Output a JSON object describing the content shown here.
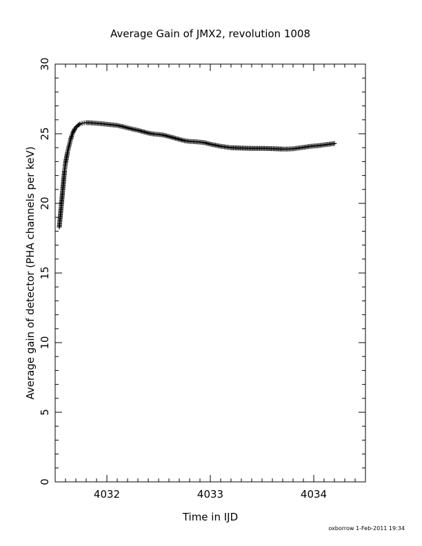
{
  "chart_data": {
    "type": "scatter",
    "title": "Average Gain of JMX2, revolution 1008",
    "xlabel": "Time in IJD",
    "ylabel": "Average gain of detector (PHA channels per keV)",
    "xlim": [
      4031.5,
      4034.5
    ],
    "ylim": [
      0,
      30
    ],
    "xticks_major": [
      4032,
      4033,
      4034
    ],
    "xtick_labels": [
      "4032",
      "4033",
      "4034"
    ],
    "yticks_major": [
      0,
      5,
      10,
      15,
      20,
      25,
      30
    ],
    "ytick_labels": [
      "0",
      "5",
      "10",
      "15",
      "20",
      "25",
      "30"
    ],
    "grid": false,
    "marker": "plus",
    "series": [
      {
        "points": [
          [
            4031.54,
            18.3
          ],
          [
            4031.545,
            18.7
          ],
          [
            4031.55,
            19.1
          ],
          [
            4031.555,
            19.5
          ],
          [
            4031.56,
            19.9
          ],
          [
            4031.565,
            20.3
          ],
          [
            4031.57,
            20.7
          ],
          [
            4031.575,
            21.1
          ],
          [
            4031.58,
            21.5
          ],
          [
            4031.585,
            21.9
          ],
          [
            4031.59,
            22.3
          ],
          [
            4031.595,
            22.6
          ],
          [
            4031.6,
            22.9
          ],
          [
            4031.61,
            23.3
          ],
          [
            4031.62,
            23.7
          ],
          [
            4031.63,
            24.0
          ],
          [
            4031.64,
            24.3
          ],
          [
            4031.65,
            24.6
          ],
          [
            4031.66,
            24.85
          ],
          [
            4031.67,
            25.05
          ],
          [
            4031.68,
            25.2
          ],
          [
            4031.69,
            25.35
          ],
          [
            4031.7,
            25.45
          ],
          [
            4031.72,
            25.6
          ],
          [
            4031.74,
            25.7
          ],
          [
            4031.76,
            25.75
          ],
          [
            4031.78,
            25.78
          ],
          [
            4031.8,
            25.8
          ],
          [
            4031.85,
            25.78
          ],
          [
            4031.9,
            25.75
          ],
          [
            4031.95,
            25.72
          ],
          [
            4032.0,
            25.68
          ],
          [
            4032.05,
            25.64
          ],
          [
            4032.1,
            25.6
          ],
          [
            4032.15,
            25.52
          ],
          [
            4032.2,
            25.42
          ],
          [
            4032.25,
            25.33
          ],
          [
            4032.3,
            25.25
          ],
          [
            4032.35,
            25.15
          ],
          [
            4032.4,
            25.05
          ],
          [
            4032.45,
            24.98
          ],
          [
            4032.5,
            24.95
          ],
          [
            4032.55,
            24.9
          ],
          [
            4032.6,
            24.8
          ],
          [
            4032.65,
            24.7
          ],
          [
            4032.7,
            24.6
          ],
          [
            4032.75,
            24.5
          ],
          [
            4032.8,
            24.45
          ],
          [
            4032.85,
            24.43
          ],
          [
            4032.9,
            24.4
          ],
          [
            4032.95,
            24.35
          ],
          [
            4033.0,
            24.25
          ],
          [
            4033.05,
            24.18
          ],
          [
            4033.1,
            24.1
          ],
          [
            4033.15,
            24.05
          ],
          [
            4033.2,
            24.0
          ],
          [
            4033.3,
            23.97
          ],
          [
            4033.4,
            23.95
          ],
          [
            4033.5,
            23.95
          ],
          [
            4033.6,
            23.93
          ],
          [
            4033.7,
            23.9
          ],
          [
            4033.75,
            23.9
          ],
          [
            4033.8,
            23.92
          ],
          [
            4033.85,
            23.97
          ],
          [
            4033.9,
            24.02
          ],
          [
            4033.95,
            24.08
          ],
          [
            4034.0,
            24.12
          ],
          [
            4034.05,
            24.15
          ],
          [
            4034.1,
            24.2
          ],
          [
            4034.15,
            24.25
          ],
          [
            4034.2,
            24.3
          ]
        ]
      }
    ]
  },
  "footer": {
    "credit": "oxborrow   1-Feb-2011 19:34"
  }
}
